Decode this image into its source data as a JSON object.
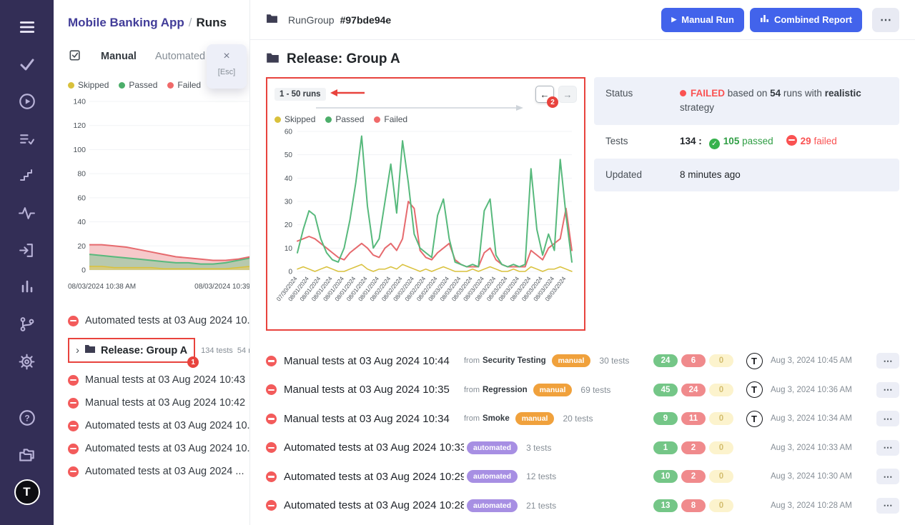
{
  "colors": {
    "rail_bg": "#332e56",
    "accent_blue": "#4263eb",
    "annotation_red": "#e8433d",
    "failed_red": "#fa5252",
    "passed_green": "#57b97c",
    "skipped_yellow": "#d9c13c",
    "manual_badge": "#f0a13c",
    "automated_badge": "#a78fe3",
    "row_alt_bg": "#eef1f9"
  },
  "rail": {
    "icons": [
      "menu-icon",
      "check-icon",
      "play-circle-icon",
      "list-check-icon",
      "steps-icon",
      "activity-icon",
      "sign-in-icon",
      "bar-chart-icon",
      "git-branch-icon",
      "gear-icon",
      "help-icon",
      "folders-icon",
      "logo-t"
    ]
  },
  "panel": {
    "breadcrumb": {
      "project": "Mobile Banking App",
      "separator": "/",
      "page": "Runs"
    },
    "tabs": {
      "icon": "run-list-icon",
      "manual": "Manual",
      "automated": "Automated"
    },
    "tooltip": {
      "close": "×",
      "esc": "[Esc]"
    },
    "legend": {
      "skipped": "Skipped",
      "passed": "Passed",
      "failed": "Failed"
    },
    "mini_chart": {
      "type": "line",
      "ylim": [
        0,
        140
      ],
      "yticks": [
        140,
        120,
        100,
        80,
        60,
        40,
        20,
        0
      ],
      "x_labels": [
        "08/03/2024 10:38 AM",
        "08/03/2024 10:39"
      ],
      "series": [
        {
          "name": "Failed",
          "color": "#e66a6e",
          "fill": "rgba(238,148,150,0.5)",
          "values": [
            21,
            21,
            20,
            19,
            17,
            15,
            13,
            11,
            10,
            9,
            8,
            8,
            9,
            11
          ]
        },
        {
          "name": "Passed",
          "color": "#57b97c",
          "fill": "rgba(131,201,151,0.55)",
          "values": [
            13,
            12,
            11,
            10,
            9,
            8,
            7,
            6,
            6,
            5,
            5,
            6,
            8,
            10
          ]
        },
        {
          "name": "Skipped",
          "color": "#d9c13c",
          "fill": "rgba(226,203,106,0.65)",
          "values": [
            3,
            3,
            2,
            2,
            2,
            2,
            1,
            1,
            1,
            1,
            1,
            1,
            2,
            3
          ]
        }
      ]
    },
    "runs": [
      {
        "title": "Automated tests at 03 Aug 2024 10..."
      },
      {
        "title": "Release: Group A",
        "chevron": "›",
        "meta_tests": "134 tests",
        "meta_runs": "54 r...",
        "annotation_badge": "1"
      },
      {
        "title": "Manual tests at 03 Aug 2024 10:43"
      },
      {
        "title": "Manual tests at 03 Aug 2024 10:42"
      },
      {
        "title": "Automated tests at 03 Aug 2024 10..."
      },
      {
        "title": "Automated tests at 03 Aug 2024 10..."
      },
      {
        "title": "Automated tests at 03 Aug 2024 ..."
      }
    ]
  },
  "topbar": {
    "rungroup_label": "RunGroup",
    "rungroup_id": "#97bde94e",
    "manual_run": "Manual Run",
    "manual_run_icon": "▶",
    "combined_report": "Combined Report",
    "more": "⋯"
  },
  "main": {
    "title": "Release: Group A",
    "chart_header": {
      "range": "1 - 50 runs",
      "prev": "←",
      "next": "→",
      "annotation_badge": "2"
    },
    "legend": {
      "skipped": "Skipped",
      "passed": "Passed",
      "failed": "Failed"
    },
    "chart_data": {
      "type": "line",
      "title": "",
      "xlabel": "",
      "ylabel": "",
      "ylim": [
        0,
        60
      ],
      "yticks": [
        60,
        50,
        40,
        30,
        20,
        10,
        0
      ],
      "grid": "horizontal",
      "legend_position": "top",
      "x_labels": [
        "07/30/2024",
        "08/01/2024",
        "08/01/2024",
        "08/01/2024",
        "08/01/2024",
        "08/01/2024",
        "08/01/2024",
        "08/01/2024",
        "08/02/2024",
        "08/02/2024",
        "08/02/2024",
        "08/02/2024",
        "08/02/2024",
        "08/03/2024",
        "08/03/2024",
        "08/03/2024",
        "08/03/2024",
        "08/03/2024",
        "08/03/2024",
        "08/03/2024",
        "08/03/2024",
        "08/03/2024",
        "08/03/2024",
        "08/03/2024"
      ],
      "series": [
        {
          "name": "Skipped",
          "color": "#d9c13c",
          "values": [
            1,
            2,
            1,
            0,
            1,
            2,
            1,
            0,
            0,
            1,
            2,
            3,
            1,
            0,
            1,
            1,
            2,
            1,
            3,
            2,
            1,
            0,
            1,
            0,
            1,
            2,
            1,
            0,
            0,
            0,
            1,
            0,
            1,
            2,
            1,
            0,
            0,
            1,
            0,
            0,
            2,
            1,
            0,
            1,
            1,
            2,
            1,
            0
          ]
        },
        {
          "name": "Failed",
          "color": "#e66a6e",
          "values": [
            13,
            14,
            15,
            14,
            12,
            10,
            8,
            6,
            5,
            8,
            10,
            12,
            10,
            7,
            6,
            10,
            12,
            9,
            14,
            30,
            27,
            9,
            6,
            5,
            8,
            10,
            12,
            5,
            3,
            2,
            2,
            2,
            8,
            10,
            5,
            3,
            2,
            2,
            2,
            2,
            9,
            7,
            5,
            10,
            12,
            14,
            27,
            9
          ]
        },
        {
          "name": "Passed",
          "color": "#57b97c",
          "values": [
            8,
            18,
            26,
            24,
            14,
            8,
            5,
            4,
            10,
            22,
            38,
            58,
            28,
            10,
            14,
            30,
            46,
            25,
            56,
            38,
            16,
            10,
            8,
            6,
            24,
            31,
            14,
            4,
            3,
            2,
            3,
            2,
            26,
            31,
            7,
            3,
            2,
            3,
            2,
            3,
            44,
            18,
            7,
            16,
            9,
            48,
            24,
            4
          ]
        }
      ]
    },
    "status_table": {
      "status": {
        "label": "Status",
        "word": "FAILED",
        "t1": "based on",
        "b1": "54",
        "t2": "runs with",
        "b2": "realistic",
        "t3": "strategy"
      },
      "tests": {
        "label": "Tests",
        "total": "134",
        "colon": ":",
        "passed": "105",
        "passed_word": "passed",
        "failed": "29",
        "failed_word": "failed"
      },
      "updated": {
        "label": "Updated",
        "value": "8 minutes ago"
      }
    },
    "runs": [
      {
        "title": "Manual tests at 03 Aug 2024 10:44",
        "from_label": "from",
        "from": "Security Testing",
        "badge": "manual",
        "tests": "30 tests",
        "passed": "24",
        "failed": "6",
        "skipped": "0",
        "avatar": "T",
        "date": "Aug 3, 2024 10:45 AM",
        "menu": "⋯"
      },
      {
        "title": "Manual tests at 03 Aug 2024 10:35",
        "from_label": "from",
        "from": "Regression",
        "badge": "manual",
        "tests": "69 tests",
        "passed": "45",
        "failed": "24",
        "skipped": "0",
        "avatar": "T",
        "date": "Aug 3, 2024 10:36 AM",
        "menu": "⋯"
      },
      {
        "title": "Manual tests at 03 Aug 2024 10:34",
        "from_label": "from",
        "from": "Smoke",
        "badge": "manual",
        "tests": "20 tests",
        "passed": "9",
        "failed": "11",
        "skipped": "0",
        "avatar": "T",
        "date": "Aug 3, 2024 10:34 AM",
        "menu": "⋯"
      },
      {
        "title": "Automated tests at 03 Aug 2024 10:33",
        "badge": "automated",
        "tests": "3 tests",
        "passed": "1",
        "failed": "2",
        "skipped": "0",
        "date": "Aug 3, 2024 10:33 AM",
        "menu": "⋯"
      },
      {
        "title": "Automated tests at 03 Aug 2024 10:29",
        "badge": "automated",
        "tests": "12 tests",
        "passed": "10",
        "failed": "2",
        "skipped": "0",
        "date": "Aug 3, 2024 10:30 AM",
        "menu": "⋯"
      },
      {
        "title": "Automated tests at 03 Aug 2024 10:28",
        "badge": "automated",
        "tests": "21 tests",
        "passed": "13",
        "failed": "8",
        "skipped": "0",
        "date": "Aug 3, 2024 10:28 AM",
        "menu": "⋯"
      }
    ]
  }
}
